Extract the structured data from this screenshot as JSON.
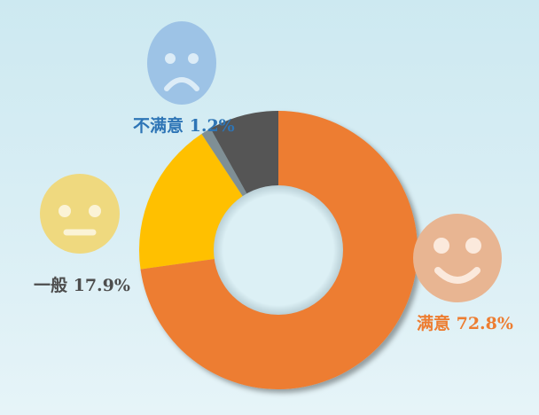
{
  "chart_data": {
    "type": "pie",
    "donut": true,
    "start": "top, clockwise",
    "slices": [
      {
        "label": "满意",
        "value": 72.8,
        "display": "满意 72.8%",
        "color": "#ed7d31",
        "icon": "smile-face-icon",
        "icon_color": "#e8b592",
        "label_color": "#ed7d31"
      },
      {
        "label": "一般",
        "value": 17.9,
        "display": "一般 17.9%",
        "color": "#ffc000",
        "icon": "neutral-face-icon",
        "icon_color": "#efd97f",
        "label_color": "#4d4d4d"
      },
      {
        "label": "不满意",
        "value": 1.2,
        "display": "不满意 1.2%",
        "color": "#7f8f95",
        "icon": "sad-face-icon",
        "icon_color": "#9dc3e6",
        "label_color": "#2e75b6"
      },
      {
        "label": "",
        "value": 8.1,
        "display": "",
        "color": "#555555"
      }
    ]
  }
}
